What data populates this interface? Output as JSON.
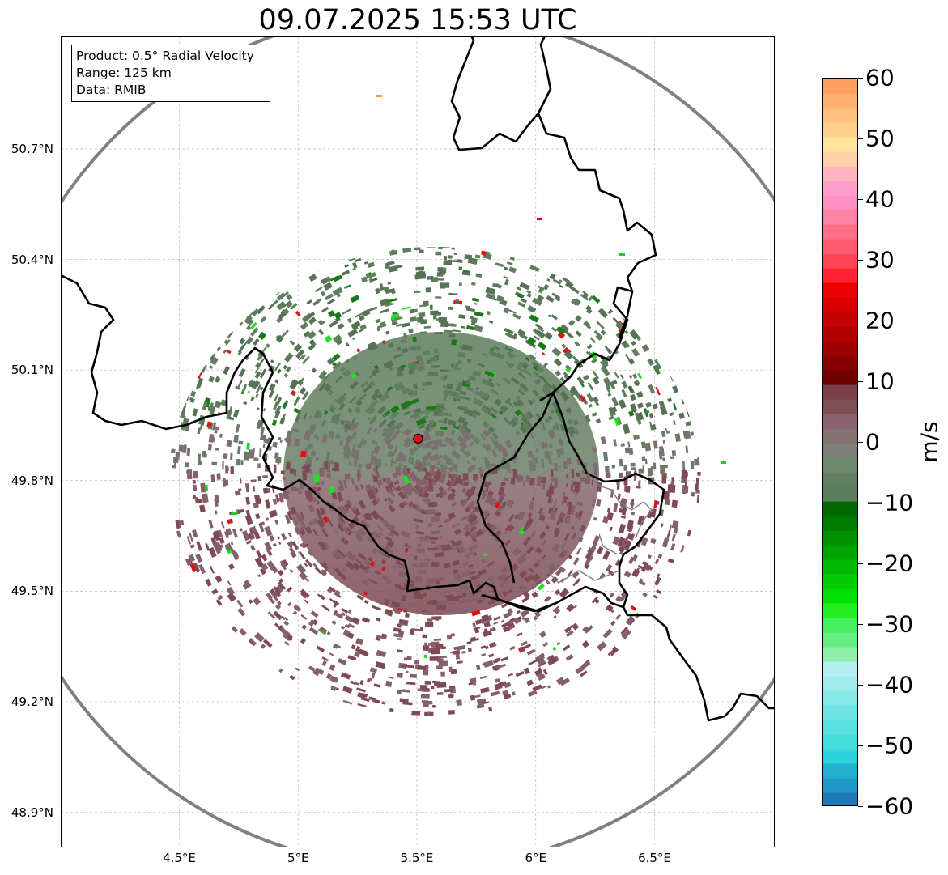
{
  "title": "09.07.2025 15:53 UTC",
  "info_box": {
    "product": "Product: 0.5° Radial Velocity",
    "range": "Range: 125 km",
    "source": "Data: RMIB"
  },
  "map": {
    "lat_labels": [
      "50.7°N",
      "50.4°N",
      "50.1°N",
      "49.8°N",
      "49.5°N",
      "49.2°N",
      "48.9°N"
    ],
    "lon_labels": [
      "4.5°E",
      "5°E",
      "5.5°E",
      "6°E",
      "6.5°E"
    ],
    "lat_values": [
      50.7,
      50.4,
      50.1,
      49.8,
      49.5,
      49.2,
      48.9
    ],
    "lon_values": [
      4.5,
      5.0,
      5.5,
      6.0,
      6.5
    ],
    "lon_range": [
      4.0,
      7.0
    ],
    "lat_range": [
      48.8,
      51.0
    ],
    "radar_site": {
      "lon": 5.505,
      "lat": 49.914
    },
    "range_ring_color": "#808080",
    "border_color": "#000000",
    "gridlines": true
  },
  "colorbar": {
    "unit": "m/s",
    "min": -60,
    "max": 60,
    "tick_labels": [
      "60",
      "50",
      "40",
      "30",
      "20",
      "10",
      "0",
      "−10",
      "−20",
      "−30",
      "−40",
      "−50",
      "−60"
    ],
    "tick_values": [
      60,
      50,
      40,
      30,
      20,
      10,
      0,
      -10,
      -20,
      -30,
      -40,
      -50,
      -60
    ],
    "colors": [
      "#1f77b4",
      "#2196c8",
      "#22b0d0",
      "#2bd4dc",
      "#45dcdc",
      "#5ae0e0",
      "#70e4e4",
      "#88e8e8",
      "#a0ecec",
      "#b5eef0",
      "#8ef0a8",
      "#66ee80",
      "#44f060",
      "#22ee22",
      "#00e000",
      "#00cc00",
      "#00b800",
      "#00a400",
      "#009000",
      "#007c00",
      "#006a00",
      "#5a7d5a",
      "#637f63",
      "#6d8a6d",
      "#7e7e7a",
      "#857072",
      "#8a6470",
      "#7f4f58",
      "#7a3f48",
      "#6e0000",
      "#880000",
      "#9e0000",
      "#b20000",
      "#c40000",
      "#d80000",
      "#ee0000",
      "#ff2030",
      "#ff4658",
      "#ff5c70",
      "#ff7088",
      "#ff82a4",
      "#ff90c4",
      "#ff9ec8",
      "#ffb4c0",
      "#ffd0a8",
      "#ffe49c",
      "#ffd08a",
      "#ffc07e",
      "#ffb070",
      "#ffa060"
    ]
  }
}
